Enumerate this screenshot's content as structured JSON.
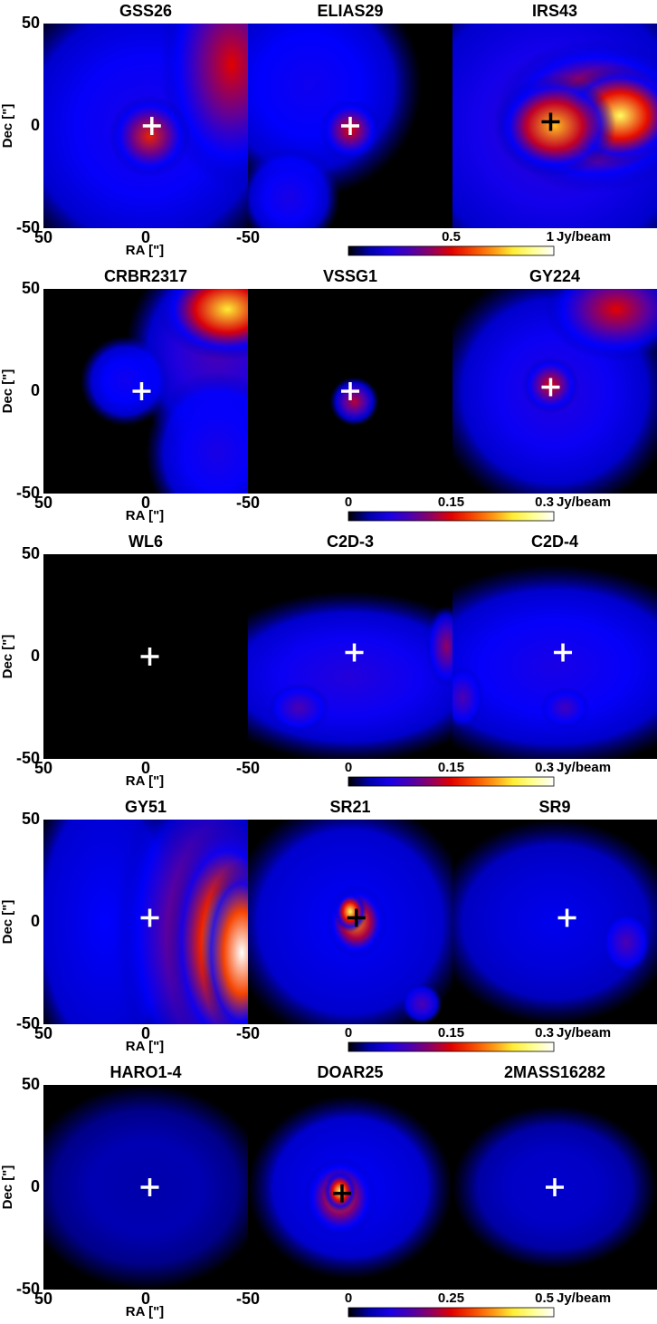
{
  "axes": {
    "dec_label": "Dec [\"]",
    "ra_label": "RA [\"]",
    "dec_ticks": [
      "50",
      "0",
      "-50"
    ],
    "ra_ticks": [
      "50",
      "0",
      "-50"
    ]
  },
  "rows": [
    {
      "panels": [
        {
          "name": "GSS26",
          "cross": "white"
        },
        {
          "name": "ELIAS29",
          "cross": "white"
        },
        {
          "name": "IRS43",
          "cross": "black"
        }
      ],
      "colorbar": {
        "range": [
          0,
          1
        ],
        "ticks": [
          0.5,
          1
        ],
        "unit": "Jy/beam"
      }
    },
    {
      "panels": [
        {
          "name": "CRBR2317",
          "cross": "white"
        },
        {
          "name": "VSSG1",
          "cross": "white"
        },
        {
          "name": "GY224",
          "cross": "white"
        }
      ],
      "colorbar": {
        "range": [
          0,
          0.3
        ],
        "ticks": [
          0,
          0.15,
          0.3
        ],
        "unit": "Jy/beam"
      }
    },
    {
      "panels": [
        {
          "name": "WL6",
          "cross": "white"
        },
        {
          "name": "C2D-3",
          "cross": "white"
        },
        {
          "name": "C2D-4",
          "cross": "white"
        }
      ],
      "colorbar": {
        "range": [
          0,
          0.3
        ],
        "ticks": [
          0,
          0.15,
          0.3
        ],
        "unit": "Jy/beam"
      }
    },
    {
      "panels": [
        {
          "name": "GY51",
          "cross": "white"
        },
        {
          "name": "SR21",
          "cross": "black"
        },
        {
          "name": "SR9",
          "cross": "white"
        }
      ],
      "colorbar": {
        "range": [
          0,
          0.3
        ],
        "ticks": [
          0,
          0.15,
          0.3
        ],
        "unit": "Jy/beam"
      }
    },
    {
      "panels": [
        {
          "name": "HARO1-4",
          "cross": "white"
        },
        {
          "name": "DOAR25",
          "cross": "black"
        },
        {
          "name": "2MASS16282",
          "cross": "white"
        }
      ],
      "colorbar": {
        "range": [
          0,
          0.5
        ],
        "ticks": [
          0,
          0.25,
          0.5
        ],
        "unit": "Jy/beam"
      }
    }
  ]
}
